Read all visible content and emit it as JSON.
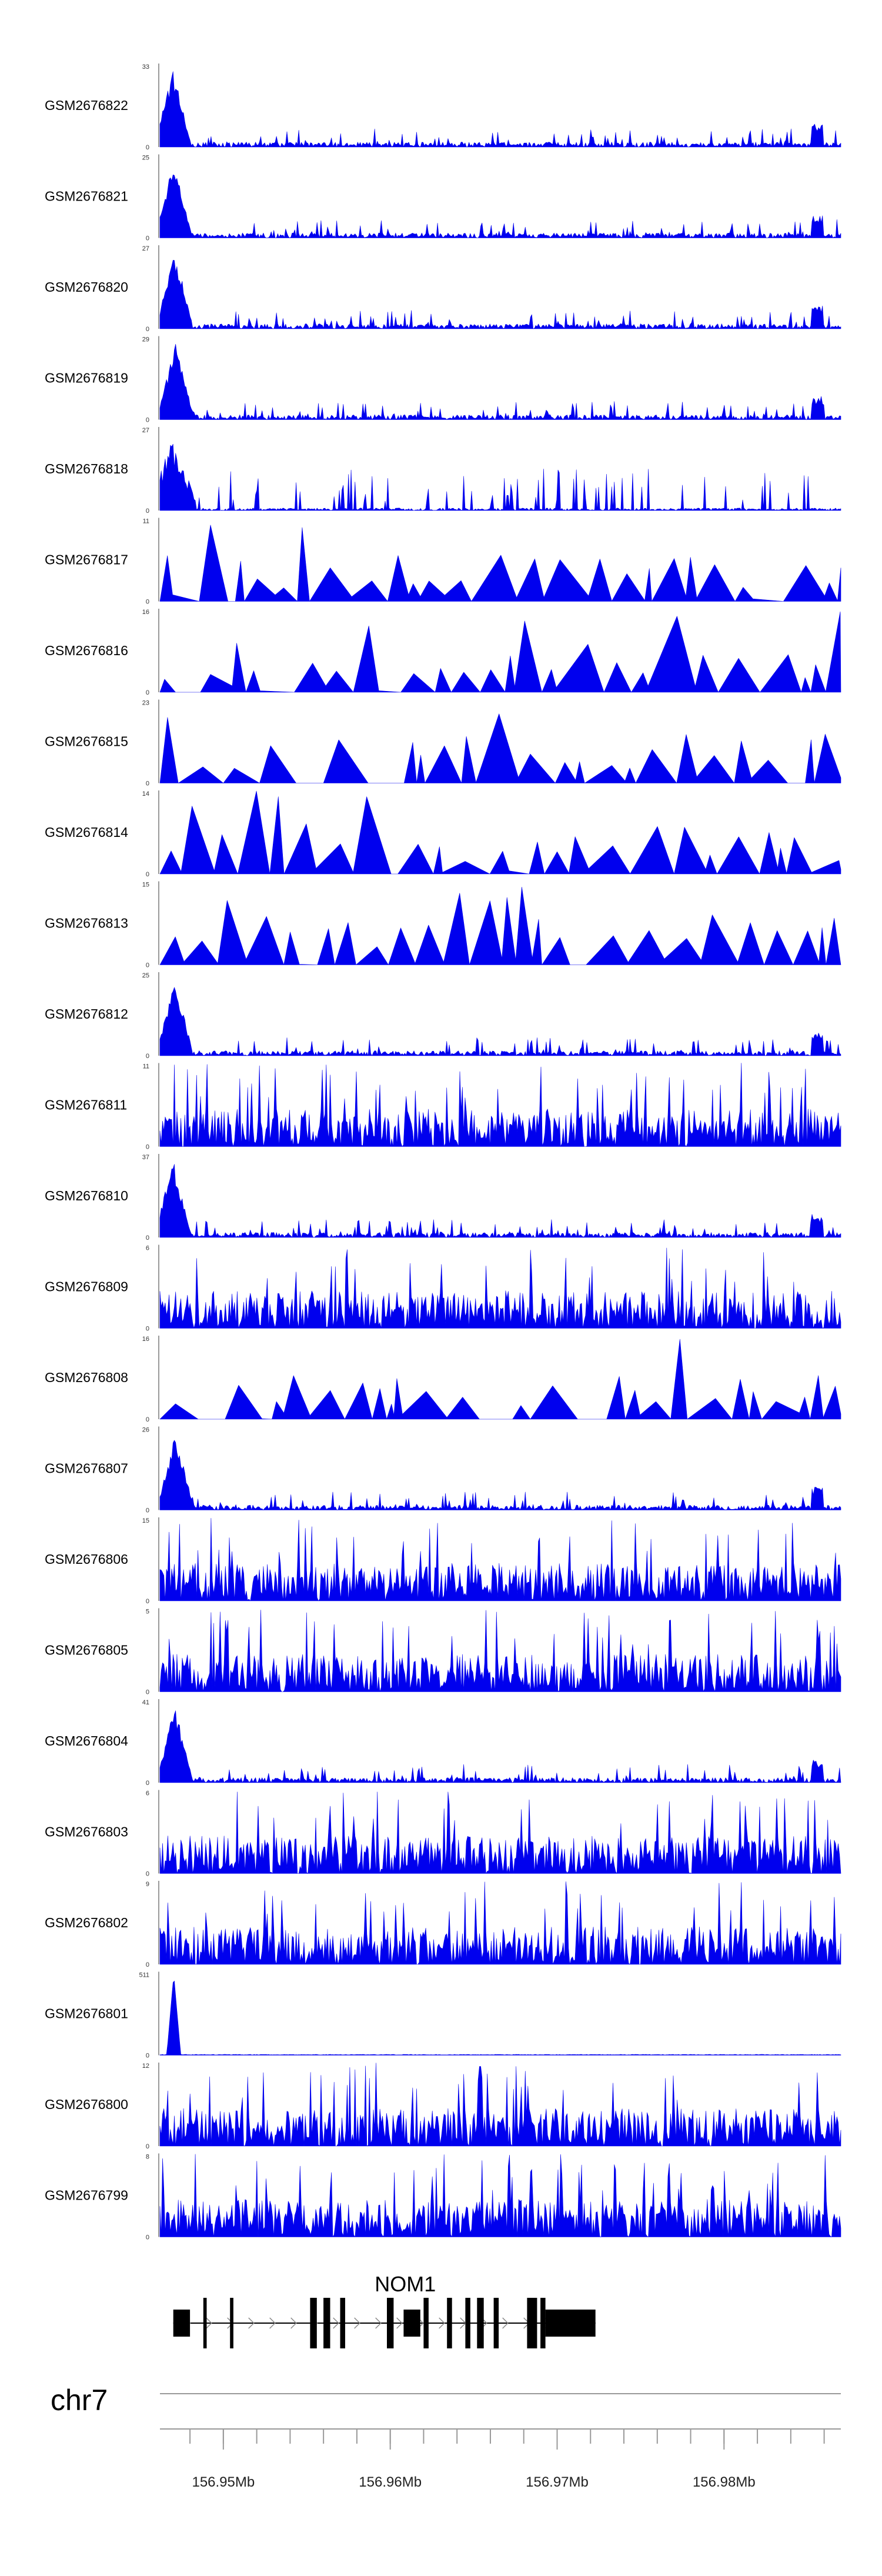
{
  "chart_data": {
    "type": "area",
    "title": "",
    "region": {
      "chrom": "chr7",
      "start": 156946200,
      "end": 156987000
    },
    "ylim_min": 0,
    "tracks": [
      {
        "name": "GSM2676822",
        "ymax": 33,
        "style": "peak"
      },
      {
        "name": "GSM2676821",
        "ymax": 25,
        "style": "peak"
      },
      {
        "name": "GSM2676820",
        "ymax": 27,
        "style": "peak"
      },
      {
        "name": "GSM2676819",
        "ymax": 29,
        "style": "peak"
      },
      {
        "name": "GSM2676818",
        "ymax": 27,
        "style": "sparse"
      },
      {
        "name": "GSM2676817",
        "ymax": 11,
        "style": "triangles"
      },
      {
        "name": "GSM2676816",
        "ymax": 16,
        "style": "triangles"
      },
      {
        "name": "GSM2676815",
        "ymax": 23,
        "style": "triangles"
      },
      {
        "name": "GSM2676814",
        "ymax": 14,
        "style": "triangles"
      },
      {
        "name": "GSM2676813",
        "ymax": 15,
        "style": "triangles"
      },
      {
        "name": "GSM2676812",
        "ymax": 25,
        "style": "peak"
      },
      {
        "name": "GSM2676811",
        "ymax": 11,
        "style": "dense"
      },
      {
        "name": "GSM2676810",
        "ymax": 37,
        "style": "peak"
      },
      {
        "name": "GSM2676809",
        "ymax": 6,
        "style": "dense"
      },
      {
        "name": "GSM2676808",
        "ymax": 16,
        "style": "triangles"
      },
      {
        "name": "GSM2676807",
        "ymax": 26,
        "style": "peak"
      },
      {
        "name": "GSM2676806",
        "ymax": 15,
        "style": "dense"
      },
      {
        "name": "GSM2676805",
        "ymax": 5,
        "style": "dense"
      },
      {
        "name": "GSM2676804",
        "ymax": 41,
        "style": "peak"
      },
      {
        "name": "GSM2676803",
        "ymax": 6,
        "style": "dense"
      },
      {
        "name": "GSM2676802",
        "ymax": 9,
        "style": "dense"
      },
      {
        "name": "GSM2676801",
        "ymax": 511,
        "style": "spike"
      },
      {
        "name": "GSM2676800",
        "ymax": 12,
        "style": "dense"
      },
      {
        "name": "GSM2676799",
        "ymax": 8,
        "style": "dense"
      }
    ],
    "gene": {
      "name": "NOM1",
      "strand": "+",
      "start": 156947000,
      "end": 156972300,
      "exons": [
        [
          156947000,
          156948000
        ],
        [
          156948800,
          156949000
        ],
        [
          156950400,
          156950600
        ],
        [
          156955200,
          156955600
        ],
        [
          156956000,
          156956400
        ],
        [
          156957000,
          156957300
        ],
        [
          156959800,
          156960200
        ],
        [
          156960800,
          156961800
        ],
        [
          156962000,
          156962300
        ],
        [
          156963400,
          156963700
        ],
        [
          156964500,
          156964800
        ],
        [
          156965200,
          156965600
        ],
        [
          156966200,
          156966500
        ],
        [
          156968200,
          156968800
        ],
        [
          156969000,
          156969300
        ],
        [
          156969300,
          156972300
        ]
      ]
    },
    "axis": {
      "chrom_label": "chr7",
      "ticks": [
        {
          "pos": 156950000,
          "label": "156.95Mb"
        },
        {
          "pos": 156960000,
          "label": "156.96Mb"
        },
        {
          "pos": 156970000,
          "label": "156.97Mb"
        },
        {
          "pos": 156980000,
          "label": "156.98Mb"
        }
      ],
      "minor_tick_step": 2000
    }
  }
}
